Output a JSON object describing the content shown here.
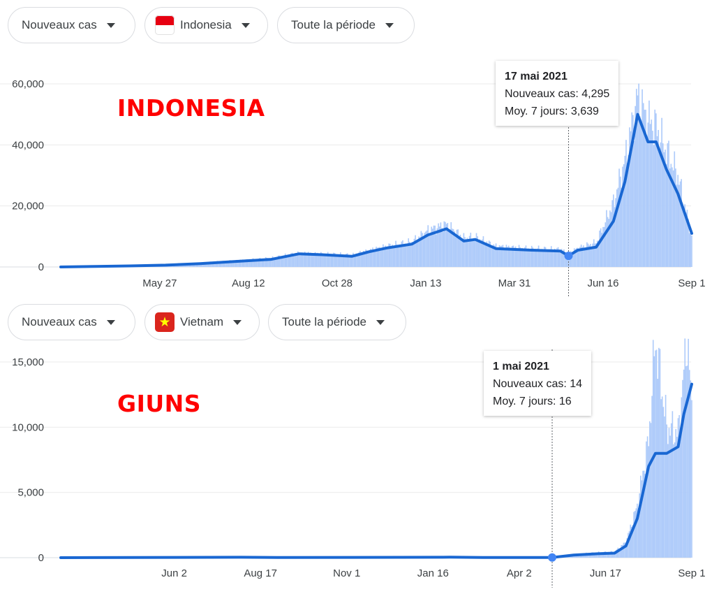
{
  "panels": [
    {
      "controls": {
        "metric": "Nouveaux cas",
        "country": "Indonesia",
        "country_flag": "indonesia-flag-icon",
        "period": "Toute la période"
      },
      "annotation_title": "INDONESIA",
      "tooltip": {
        "date": "17 mai 2021",
        "new_cases": "Nouveaux cas: 4,295",
        "avg": "Moy. 7 jours: 3,639"
      },
      "colors": {
        "line": "#1967d2",
        "bars": "#aecbfa",
        "title": "#ff0000"
      }
    },
    {
      "controls": {
        "metric": "Nouveaux cas",
        "country": "Vietnam",
        "country_flag": "vietnam-flag-icon",
        "period": "Toute la période"
      },
      "annotation_title": "GIUNS",
      "tooltip": {
        "date": "1 mai 2021",
        "new_cases": "Nouveaux cas: 14",
        "avg": "Moy. 7 jours: 16"
      },
      "colors": {
        "line": "#1967d2",
        "bars": "#aecbfa",
        "title": "#ff0000"
      }
    }
  ],
  "chart_data": [
    {
      "type": "area",
      "title": "",
      "xlabel": "",
      "ylabel": "",
      "x_start": "2020-03-02",
      "x_end": "2021-09-01",
      "ylim": [
        0,
        60000
      ],
      "yticks": [
        0,
        20000,
        40000,
        60000
      ],
      "ytick_labels": [
        "0",
        "20,000",
        "40,000",
        "60,000"
      ],
      "xticks": [
        {
          "date": "2020-05-27",
          "label": "May 27"
        },
        {
          "date": "2020-08-12",
          "label": "Aug 12"
        },
        {
          "date": "2020-10-28",
          "label": "Oct 28"
        },
        {
          "date": "2021-01-13",
          "label": "Jan 13"
        },
        {
          "date": "2021-03-31",
          "label": "Mar 31"
        },
        {
          "date": "2021-06-16",
          "label": "Jun 16"
        },
        {
          "date": "2021-09-01",
          "label": "Sep 1"
        }
      ],
      "grid": true,
      "series": [
        {
          "name": "Moy. 7 jours",
          "points": [
            [
              "2020-03-02",
              0
            ],
            [
              "2020-04-01",
              150
            ],
            [
              "2020-05-01",
              350
            ],
            [
              "2020-06-01",
              600
            ],
            [
              "2020-07-01",
              1100
            ],
            [
              "2020-08-01",
              1800
            ],
            [
              "2020-09-01",
              2500
            ],
            [
              "2020-09-25",
              4300
            ],
            [
              "2020-10-15",
              4000
            ],
            [
              "2020-11-10",
              3500
            ],
            [
              "2020-11-25",
              5000
            ],
            [
              "2020-12-10",
              6200
            ],
            [
              "2021-01-01",
              7500
            ],
            [
              "2021-01-15",
              10500
            ],
            [
              "2021-01-31",
              12500
            ],
            [
              "2021-02-15",
              8500
            ],
            [
              "2021-02-25",
              9000
            ],
            [
              "2021-03-15",
              6000
            ],
            [
              "2021-04-15",
              5500
            ],
            [
              "2021-05-10",
              5200
            ],
            [
              "2021-05-17",
              3639
            ],
            [
              "2021-05-25",
              5500
            ],
            [
              "2021-06-10",
              6500
            ],
            [
              "2021-06-25",
              15000
            ],
            [
              "2021-07-05",
              28000
            ],
            [
              "2021-07-16",
              50000
            ],
            [
              "2021-07-25",
              41000
            ],
            [
              "2021-08-01",
              41000
            ],
            [
              "2021-08-10",
              32000
            ],
            [
              "2021-08-20",
              24000
            ],
            [
              "2021-09-01",
              11000
            ]
          ]
        },
        {
          "name": "Nouveaux cas",
          "points": [
            [
              "2020-03-02",
              0
            ],
            [
              "2020-04-01",
              200
            ],
            [
              "2020-05-01",
              400
            ],
            [
              "2020-06-01",
              700
            ],
            [
              "2020-07-01",
              1300
            ],
            [
              "2020-08-01",
              2100
            ],
            [
              "2020-09-01",
              2900
            ],
            [
              "2020-09-25",
              4600
            ],
            [
              "2020-10-15",
              4300
            ],
            [
              "2020-11-10",
              3900
            ],
            [
              "2020-11-25",
              5500
            ],
            [
              "2020-12-10",
              6800
            ],
            [
              "2021-01-01",
              8200
            ],
            [
              "2021-01-15",
              12000
            ],
            [
              "2021-01-31",
              14000
            ],
            [
              "2021-02-15",
              9500
            ],
            [
              "2021-02-25",
              9800
            ],
            [
              "2021-03-15",
              6800
            ],
            [
              "2021-04-15",
              6000
            ],
            [
              "2021-05-10",
              5800
            ],
            [
              "2021-05-17",
              4295
            ],
            [
              "2021-05-25",
              6200
            ],
            [
              "2021-06-10",
              8000
            ],
            [
              "2021-06-25",
              21000
            ],
            [
              "2021-07-05",
              35000
            ],
            [
              "2021-07-16",
              56000
            ],
            [
              "2021-07-25",
              48000
            ],
            [
              "2021-08-01",
              46000
            ],
            [
              "2021-08-10",
              38000
            ],
            [
              "2021-08-20",
              30000
            ],
            [
              "2021-09-01",
              10000
            ]
          ]
        }
      ],
      "highlight": {
        "date": "2021-05-17",
        "value": 3639
      }
    },
    {
      "type": "area",
      "title": "",
      "xlabel": "",
      "ylabel": "",
      "x_start": "2020-02-23",
      "x_end": "2021-09-01",
      "ylim": [
        0,
        17000
      ],
      "yticks": [
        0,
        5000,
        10000,
        15000
      ],
      "ytick_labels": [
        "0",
        "5,000",
        "10,000",
        "15,000"
      ],
      "xticks": [
        {
          "date": "2020-06-02",
          "label": "Jun 2"
        },
        {
          "date": "2020-08-17",
          "label": "Aug 17"
        },
        {
          "date": "2020-11-01",
          "label": "Nov 1"
        },
        {
          "date": "2021-01-16",
          "label": "Jan 16"
        },
        {
          "date": "2021-04-02",
          "label": "Apr 2"
        },
        {
          "date": "2021-06-17",
          "label": "Jun 17"
        },
        {
          "date": "2021-09-01",
          "label": "Sep 1"
        }
      ],
      "grid": true,
      "series": [
        {
          "name": "Moy. 7 jours",
          "points": [
            [
              "2020-02-23",
              0
            ],
            [
              "2020-07-31",
              30
            ],
            [
              "2020-09-01",
              10
            ],
            [
              "2021-01-31",
              40
            ],
            [
              "2021-03-01",
              10
            ],
            [
              "2021-05-01",
              16
            ],
            [
              "2021-05-20",
              200
            ],
            [
              "2021-06-10",
              300
            ],
            [
              "2021-06-25",
              350
            ],
            [
              "2021-07-05",
              900
            ],
            [
              "2021-07-15",
              3000
            ],
            [
              "2021-07-25",
              7000
            ],
            [
              "2021-07-31",
              8000
            ],
            [
              "2021-08-10",
              8000
            ],
            [
              "2021-08-20",
              8500
            ],
            [
              "2021-08-25",
              11000
            ],
            [
              "2021-09-01",
              13300
            ]
          ]
        },
        {
          "name": "Nouveaux cas",
          "points": [
            [
              "2020-02-23",
              0
            ],
            [
              "2020-07-31",
              50
            ],
            [
              "2020-09-01",
              15
            ],
            [
              "2021-01-31",
              80
            ],
            [
              "2021-03-01",
              15
            ],
            [
              "2021-05-01",
              14
            ],
            [
              "2021-05-20",
              250
            ],
            [
              "2021-06-10",
              400
            ],
            [
              "2021-06-25",
              450
            ],
            [
              "2021-07-05",
              1200
            ],
            [
              "2021-07-15",
              4000
            ],
            [
              "2021-07-25",
              9000
            ],
            [
              "2021-07-31",
              16800
            ],
            [
              "2021-08-10",
              10000
            ],
            [
              "2021-08-20",
              9500
            ],
            [
              "2021-08-28",
              17000
            ],
            [
              "2021-09-01",
              11400
            ]
          ]
        }
      ],
      "highlight": {
        "date": "2021-05-01",
        "value": 16
      }
    }
  ]
}
